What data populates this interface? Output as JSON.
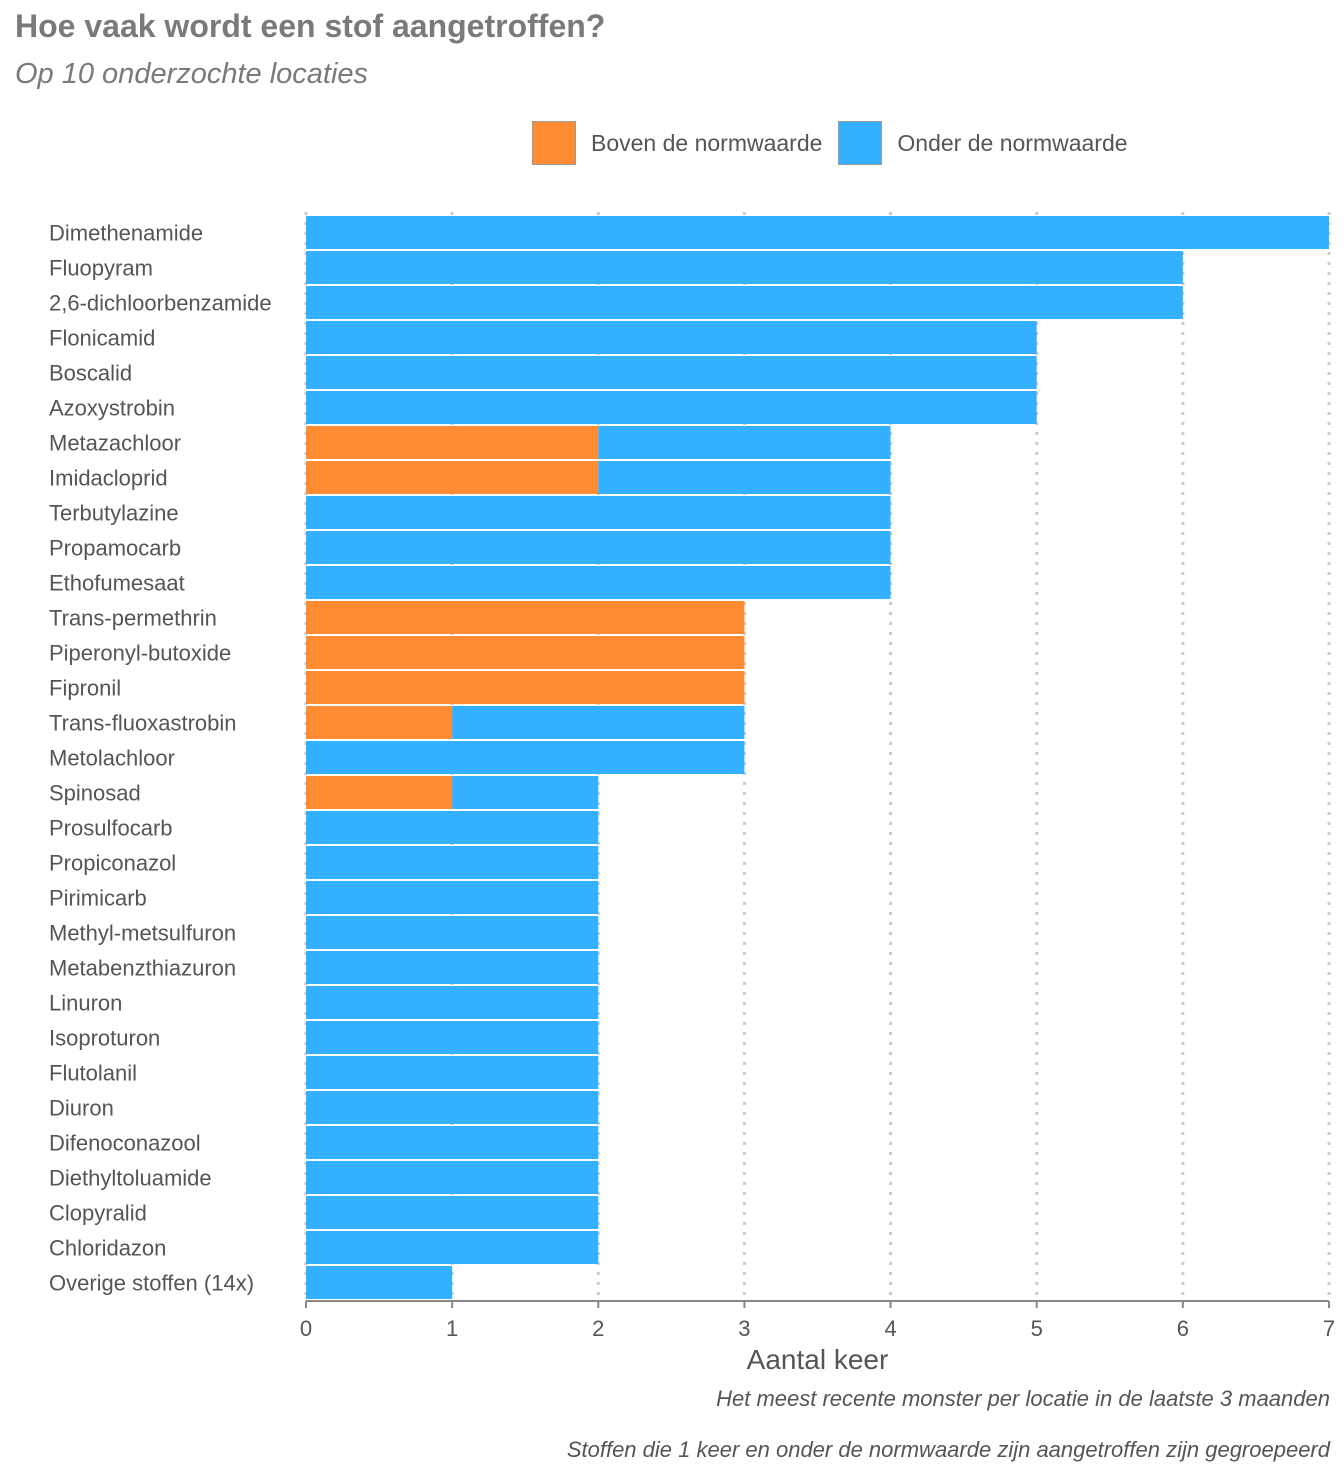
{
  "chart_data": {
    "type": "bar",
    "orientation": "horizontal",
    "stacked": true,
    "title": "Hoe vaak wordt een stof aangetroffen?",
    "subtitle": "Op 10 onderzochte locaties",
    "xlabel": "Aantal keer",
    "ylabel": "",
    "xlim": [
      0,
      7
    ],
    "xticks": [
      0,
      1,
      2,
      3,
      4,
      5,
      6,
      7
    ],
    "grid": "vertical-dotted",
    "legend_position": "top",
    "categories": [
      "Dimethenamide",
      "Fluopyram",
      "2,6-dichloorbenzamide",
      "Flonicamid",
      "Boscalid",
      "Azoxystrobin",
      "Metazachloor",
      "Imidacloprid",
      "Terbutylazine",
      "Propamocarb",
      "Ethofumesaat",
      "Trans-permethrin",
      "Piperonyl-butoxide",
      "Fipronil",
      "Trans-fluoxastrobin",
      "Metolachloor",
      "Spinosad",
      "Prosulfocarb",
      "Propiconazol",
      "Pirimicarb",
      "Methyl-metsulfuron",
      "Metabenzthiazuron",
      "Linuron",
      "Isoproturon",
      "Flutolanil",
      "Diuron",
      "Difenoconazool",
      "Diethyltoluamide",
      "Clopyralid",
      "Chloridazon",
      "Overige stoffen (14x)"
    ],
    "series": [
      {
        "name": "Boven de normwaarde",
        "color": "#ff8c33",
        "values": [
          0,
          0,
          0,
          0,
          0,
          0,
          2,
          2,
          0,
          0,
          0,
          3,
          3,
          3,
          1,
          0,
          1,
          0,
          0,
          0,
          0,
          0,
          0,
          0,
          0,
          0,
          0,
          0,
          0,
          0,
          0
        ]
      },
      {
        "name": "Onder de normwaarde",
        "color": "#33b0ff",
        "values": [
          7,
          6,
          6,
          5,
          5,
          5,
          2,
          2,
          4,
          4,
          4,
          0,
          0,
          0,
          2,
          3,
          1,
          2,
          2,
          2,
          2,
          2,
          2,
          2,
          2,
          2,
          2,
          2,
          2,
          2,
          1
        ]
      }
    ],
    "captions": [
      "Het meest recente monster per locatie in de laatste 3 maanden",
      "Stoffen die 1 keer en onder de normwaarde zijn aangetroffen zijn gegroepeerd"
    ]
  }
}
